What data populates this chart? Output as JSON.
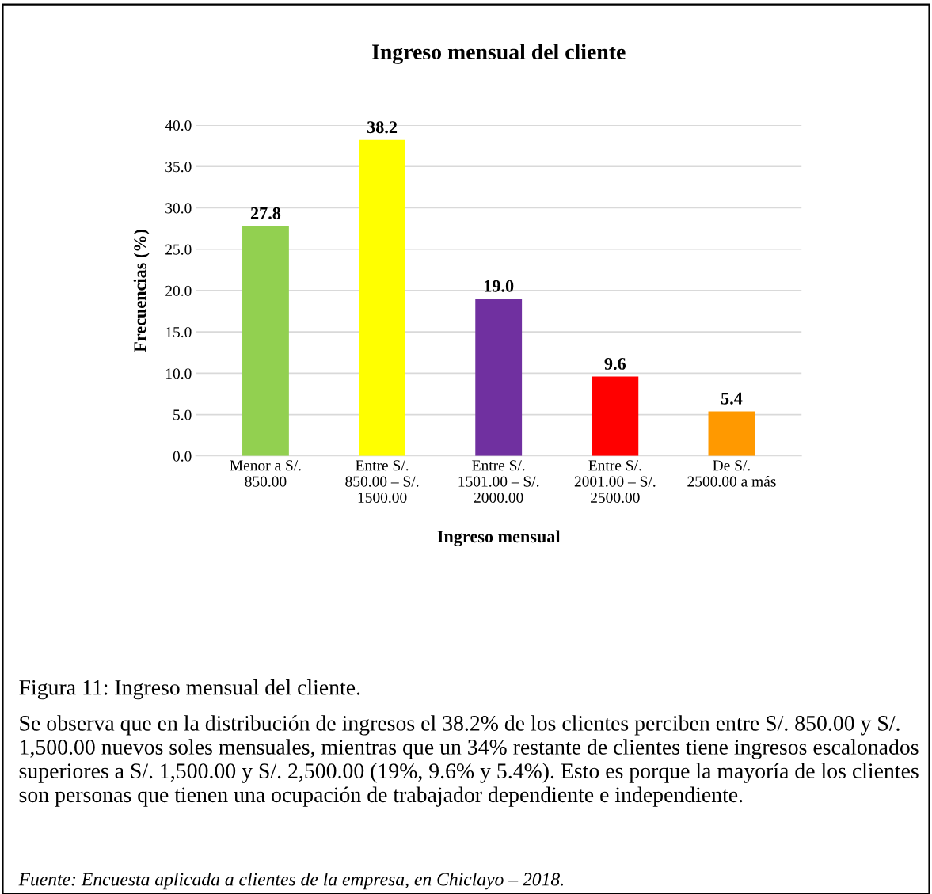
{
  "chart_data": {
    "type": "bar",
    "title": "Ingreso mensual del cliente",
    "xlabel": "Ingreso mensual",
    "ylabel": "Frecuencias (%)",
    "categories": [
      "Menor a S/.\n850.00",
      "Entre S/.\n850.00 – S/.\n1500.00",
      "Entre S/.\n1501.00 – S/.\n2000.00",
      "Entre S/.\n2001.00 – S/.\n2500.00",
      "De S/.\n2500.00 a más"
    ],
    "values": [
      27.8,
      38.2,
      19.0,
      9.6,
      5.4
    ],
    "value_labels": [
      "27.8",
      "38.2",
      "19.0",
      "9.6",
      "5.4"
    ],
    "colors": [
      "#92d050",
      "#ffff00",
      "#7030a0",
      "#ff0000",
      "#ff9900"
    ],
    "ylim": [
      0,
      40
    ],
    "yticks": [
      {
        "value": 0,
        "label": "0.0"
      },
      {
        "value": 5,
        "label": "5.0"
      },
      {
        "value": 10,
        "label": "10.0"
      },
      {
        "value": 15,
        "label": "15.0"
      },
      {
        "value": 20,
        "label": "20.0"
      },
      {
        "value": 25,
        "label": "25.0"
      },
      {
        "value": 30,
        "label": "30.0"
      },
      {
        "value": 35,
        "label": "35.0"
      },
      {
        "value": 40,
        "label": "40.0"
      }
    ],
    "grid": "y",
    "annotations": [
      "Figura 11: Ingreso mensual del cliente.",
      "Se observa que en la distribución de ingresos el 38.2% de los clientes perciben entre S/. 850.00 y S/. 1,500.00 nuevos soles mensuales, mientras que un 34% restante de clientes tiene ingresos escalonados superiores a S/. 1,500.00 y S/. 2,500.00 (19%, 9.6% y 5.4%). Esto es porque la mayoría de los clientes son personas que tienen una ocupación de trabajador dependiente e independiente.",
      "Fuente: Encuesta aplicada a clientes de la empresa, en Chiclayo – 2018."
    ]
  }
}
